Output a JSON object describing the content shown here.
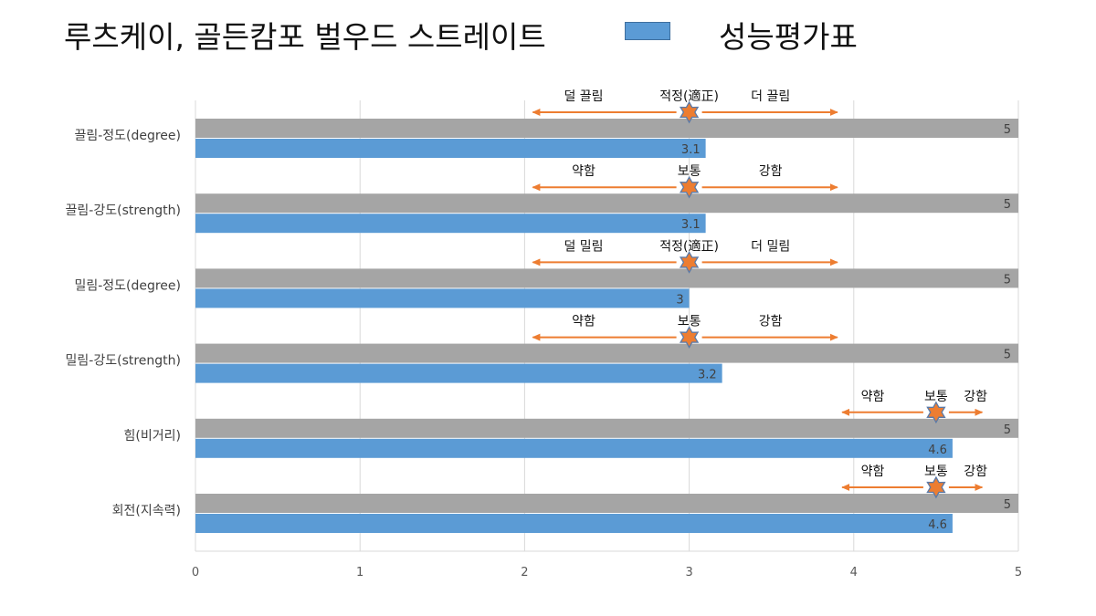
{
  "title": "루츠케이, 골든캄포 벌우드 스트레이트",
  "legend": {
    "label": "성능평가표"
  },
  "colors": {
    "max_bar": "#a5a5a5",
    "score_bar": "#5b9bd5",
    "arrow": "#ed7d31",
    "star_fill": "#ed7d31",
    "star_stroke": "#5a7aa8",
    "grid": "#d9d9d9"
  },
  "chart_data": {
    "type": "bar",
    "orientation": "horizontal",
    "categories": [
      "끌림-정도(degree)",
      "끌림-강도(strength)",
      "밀림-정도(degree)",
      "밀림-강도(strength)",
      "힘(비거리)",
      "회전(지속력)"
    ],
    "series": [
      {
        "values": [
          5,
          5,
          5,
          5,
          5,
          5
        ]
      },
      {
        "name": "성능평가표",
        "values": [
          3.1,
          3.1,
          3.0,
          3.2,
          4.6,
          4.6
        ]
      }
    ],
    "data_labels": {
      "max": [
        "5",
        "5",
        "5",
        "5",
        "5",
        "5"
      ],
      "score": [
        "3.1",
        "3.1",
        "3",
        "3.2",
        "4.6",
        "4.6"
      ]
    },
    "xlim": [
      0,
      5
    ],
    "x_ticks": [
      0,
      1,
      2,
      3,
      4,
      5
    ],
    "grid": true,
    "annotations": [
      {
        "left": "덜 끌림",
        "center": "적정(適正)",
        "right": "더 끌림",
        "marker_x": 3.0,
        "arrow_from": 2.05,
        "arrow_to": 3.9
      },
      {
        "left": "약함",
        "center": "보통",
        "right": "강함",
        "marker_x": 3.0,
        "arrow_from": 2.05,
        "arrow_to": 3.9
      },
      {
        "left": "덜 밀림",
        "center": "적정(適正)",
        "right": "더 밀림",
        "marker_x": 3.0,
        "arrow_from": 2.05,
        "arrow_to": 3.9
      },
      {
        "left": "약함",
        "center": "보통",
        "right": "강함",
        "marker_x": 3.0,
        "arrow_from": 2.05,
        "arrow_to": 3.9
      },
      {
        "left": "약함",
        "center": "보통",
        "right": "강함",
        "marker_x": 4.5,
        "arrow_from": 3.93,
        "arrow_to": 4.78
      },
      {
        "left": "약함",
        "center": "보통",
        "right": "강함",
        "marker_x": 4.5,
        "arrow_from": 3.93,
        "arrow_to": 4.78
      }
    ]
  }
}
